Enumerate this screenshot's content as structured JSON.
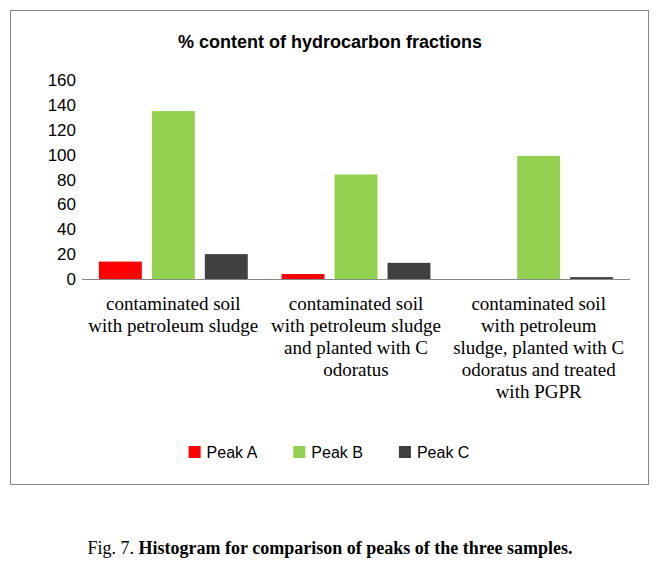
{
  "chart_data": {
    "type": "bar",
    "title": "% content of hydrocarbon fractions",
    "categories": [
      "contaminated soil with petroleum sludge",
      "contaminated soil with petroleum sludge and planted with C odoratus",
      "contaminated soil with petroleum sludge, planted with C odoratus and treated with PGPR"
    ],
    "series": [
      {
        "name": "Peak A",
        "color": "#ff0000",
        "values": [
          14,
          4,
          0
        ]
      },
      {
        "name": "Peak B",
        "color": "#92d050",
        "values": [
          135,
          84,
          99
        ]
      },
      {
        "name": "Peak C",
        "color": "#404040",
        "values": [
          20,
          13,
          1.5
        ]
      }
    ],
    "ylim": [
      0,
      160
    ],
    "yticks": [
      0,
      20,
      40,
      60,
      80,
      100,
      120,
      140,
      160
    ],
    "grid": false,
    "legend": "bottom"
  },
  "caption": {
    "label": "Fig. 7.",
    "text": "Histogram for comparison of peaks of the three samples."
  }
}
